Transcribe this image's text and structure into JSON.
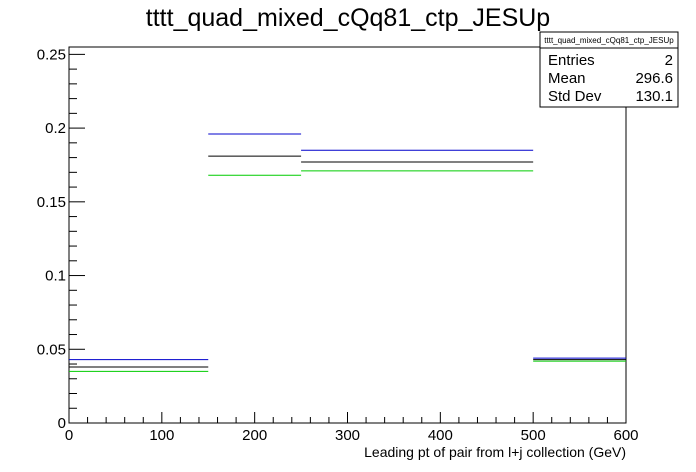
{
  "chart_data": {
    "type": "step",
    "title": "tttt_quad_mixed_cQq81_ctp_JESUp",
    "xlabel": "Leading pt of pair from l+j collection (GeV)",
    "ylabel": "",
    "xlim": [
      0,
      600
    ],
    "ylim": [
      0,
      0.255
    ],
    "x_ticks": [
      0,
      100,
      200,
      300,
      400,
      500,
      600
    ],
    "x_tick_labels": [
      "0",
      "100",
      "200",
      "300",
      "400",
      "500",
      "600"
    ],
    "y_ticks": [
      0,
      0.05,
      0.1,
      0.15,
      0.2,
      0.25
    ],
    "y_tick_labels": [
      "0",
      "0.05",
      "0.1",
      "0.15",
      "0.2",
      "0.25"
    ],
    "bin_edges": [
      0,
      150,
      250,
      500,
      600
    ],
    "series": [
      {
        "color": "#0000cc",
        "values": [
          0.043,
          0.196,
          0.185,
          0.044
        ]
      },
      {
        "color": "#000000",
        "values": [
          0.038,
          0.181,
          0.177,
          0.043
        ]
      },
      {
        "color": "#00cc00",
        "values": [
          0.035,
          0.168,
          0.171,
          0.042
        ]
      }
    ],
    "grid": false,
    "legend": "none"
  },
  "stats_box": {
    "name": "tttt_quad_mixed_cQq81_ctp_JESUp",
    "rows": [
      {
        "label": "Entries",
        "value": "2"
      },
      {
        "label": "Mean",
        "value": "296.6"
      },
      {
        "label": "Std Dev",
        "value": "130.1"
      }
    ]
  }
}
